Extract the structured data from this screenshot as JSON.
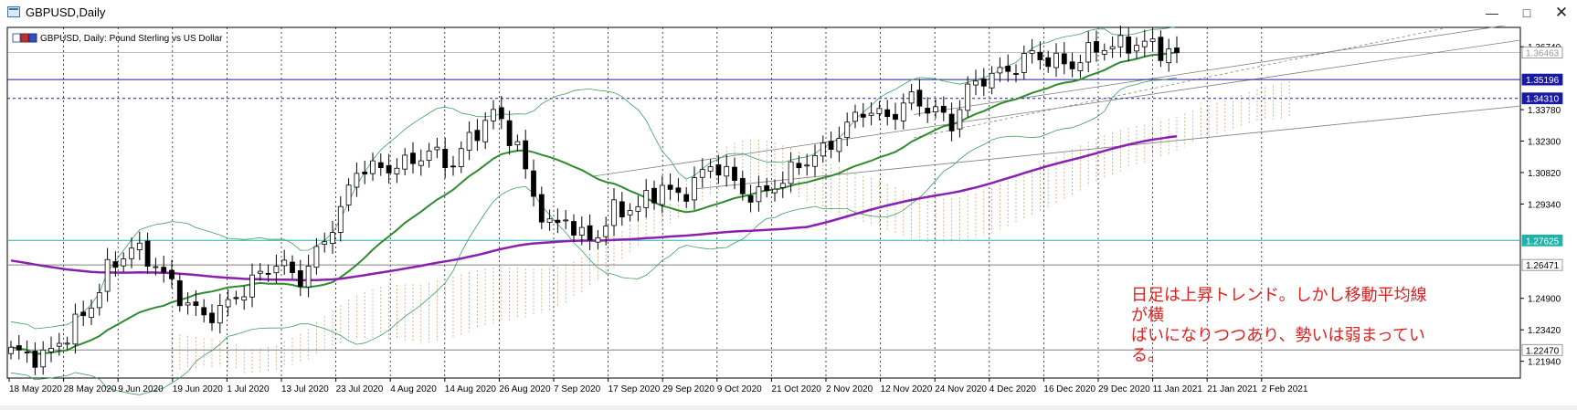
{
  "window": {
    "title": "GBPUSD,Daily",
    "minimize_icon": "minimize-icon",
    "restore_icon": "restore-icon",
    "close_icon": "close-icon"
  },
  "chart_header": {
    "symbol_icon": "chart-symbol-icon",
    "label": "GBPUSD, Daily:  Pound Sterling vs US Dollar"
  },
  "annotation": {
    "line1": "日足は上昇トレンド。しかし移動平均線が横",
    "line2": "ばいになりつつあり、勢いは弱まっている。",
    "color": "#e02020"
  },
  "colors": {
    "ma_fast": "#2e8b2e",
    "ma_slow": "#8a1fb0",
    "bollinger": "#3aa05a",
    "cloud": "#d2a070",
    "level_blue": "#1a1aa0",
    "level_teal": "#20b2aa",
    "level_gray": "#808080"
  },
  "chart_data": {
    "type": "candlestick",
    "symbol": "GBPUSD",
    "timeframe": "Daily",
    "x_tick_labels": [
      "18 May 2020",
      "28 May 2020",
      "9 Jun 2020",
      "19 Jun 2020",
      "1 Jul 2020",
      "13 Jul 2020",
      "23 Jul 2020",
      "4 Aug 2020",
      "14 Aug 2020",
      "26 Aug 2020",
      "7 Sep 2020",
      "17 Sep 2020",
      "29 Sep 2020",
      "9 Oct 2020",
      "21 Oct 2020",
      "2 Nov 2020",
      "12 Nov 2020",
      "24 Nov 2020",
      "4 Dec 2020",
      "16 Dec 2020",
      "29 Dec 2020",
      "11 Jan 2021",
      "21 Jan 2021",
      "2 Feb 2021"
    ],
    "y_ticks": [
      "1.36740",
      "1.33780",
      "1.32300",
      "1.30820",
      "1.29340",
      "1.24900",
      "1.23420",
      "1.21940"
    ],
    "ylim": [
      1.2115,
      1.3765
    ],
    "levels": [
      {
        "label": "1.36463",
        "value": 1.36463,
        "style": "gray-current",
        "color": "#808080"
      },
      {
        "label": "1.35196",
        "value": 1.35196,
        "style": "solid",
        "color": "#1a1aa0"
      },
      {
        "label": "1.34310",
        "value": 1.3431,
        "style": "dashed",
        "color": "#1a1aa0"
      },
      {
        "label": "1.27625",
        "value": 1.27625,
        "style": "solid",
        "color": "#20b2aa"
      },
      {
        "label": "1.26471",
        "value": 1.26471,
        "style": "solid",
        "color": "#808080"
      },
      {
        "label": "1.22470",
        "value": 1.2247,
        "style": "solid",
        "color": "#808080"
      }
    ],
    "close_anchors": [
      [
        0,
        1.224
      ],
      [
        4,
        1.221
      ],
      [
        7,
        1.232
      ],
      [
        10,
        1.246
      ],
      [
        12,
        1.262
      ],
      [
        15,
        1.273
      ],
      [
        18,
        1.265
      ],
      [
        21,
        1.25
      ],
      [
        24,
        1.24
      ],
      [
        27,
        1.246
      ],
      [
        30,
        1.257
      ],
      [
        33,
        1.266
      ],
      [
        36,
        1.258
      ],
      [
        38,
        1.27
      ],
      [
        41,
        1.29
      ],
      [
        43,
        1.31
      ],
      [
        46,
        1.31
      ],
      [
        49,
        1.312
      ],
      [
        52,
        1.318
      ],
      [
        55,
        1.312
      ],
      [
        57,
        1.324
      ],
      [
        60,
        1.336
      ],
      [
        61,
        1.332
      ],
      [
        63,
        1.32
      ],
      [
        65,
        1.297
      ],
      [
        67,
        1.282
      ],
      [
        69,
        1.287
      ],
      [
        71,
        1.277
      ],
      [
        73,
        1.279
      ],
      [
        75,
        1.29
      ],
      [
        78,
        1.292
      ],
      [
        81,
        1.302
      ],
      [
        83,
        1.296
      ],
      [
        86,
        1.308
      ],
      [
        88,
        1.312
      ],
      [
        91,
        1.299
      ],
      [
        93,
        1.297
      ],
      [
        96,
        1.305
      ],
      [
        98,
        1.312
      ],
      [
        101,
        1.318
      ],
      [
        104,
        1.33
      ],
      [
        106,
        1.338
      ],
      [
        109,
        1.334
      ],
      [
        112,
        1.343
      ],
      [
        115,
        1.337
      ],
      [
        117,
        1.331
      ],
      [
        119,
        1.347
      ],
      [
        121,
        1.353
      ],
      [
        124,
        1.356
      ],
      [
        127,
        1.364
      ],
      [
        130,
        1.36
      ],
      [
        132,
        1.359
      ],
      [
        135,
        1.367
      ],
      [
        138,
        1.368
      ],
      [
        141,
        1.369
      ],
      [
        143,
        1.366
      ],
      [
        145,
        1.3646
      ]
    ]
  }
}
